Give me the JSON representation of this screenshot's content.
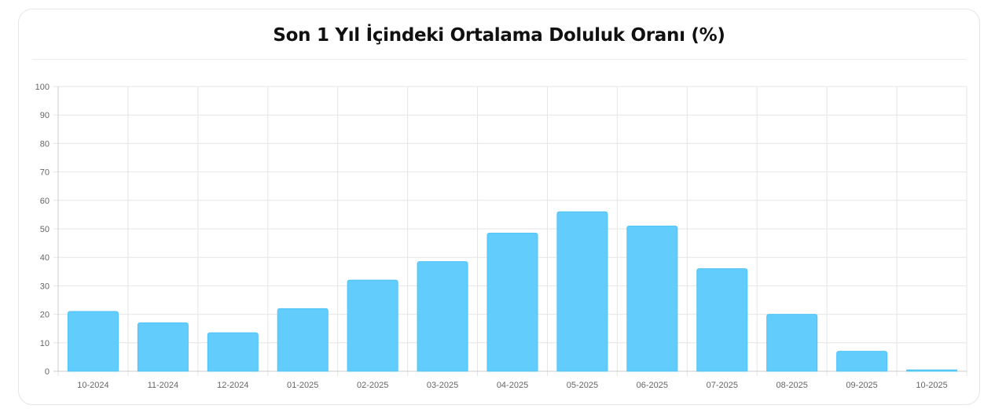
{
  "chart_data": {
    "type": "bar",
    "title": "Son 1 Yıl İçindeki Ortalama Doluluk Oranı (%)",
    "xlabel": "",
    "ylabel": "",
    "categories": [
      "10-2024",
      "11-2024",
      "12-2024",
      "01-2025",
      "02-2025",
      "03-2025",
      "04-2025",
      "05-2025",
      "06-2025",
      "07-2025",
      "08-2025",
      "09-2025",
      "10-2025"
    ],
    "values": [
      21,
      17,
      13.5,
      22,
      32,
      38.5,
      48.5,
      56,
      51,
      36,
      20,
      7,
      0.5
    ],
    "ylim": [
      0,
      100
    ],
    "yticks": [
      0,
      10,
      20,
      30,
      40,
      50,
      60,
      70,
      80,
      90,
      100
    ],
    "grid": true,
    "legend": "none",
    "colors": {
      "bar": "#62cdfd",
      "bar_stroke": "#4fc3f7",
      "grid": "#e6e6e6",
      "axis": "#cccccc"
    }
  }
}
